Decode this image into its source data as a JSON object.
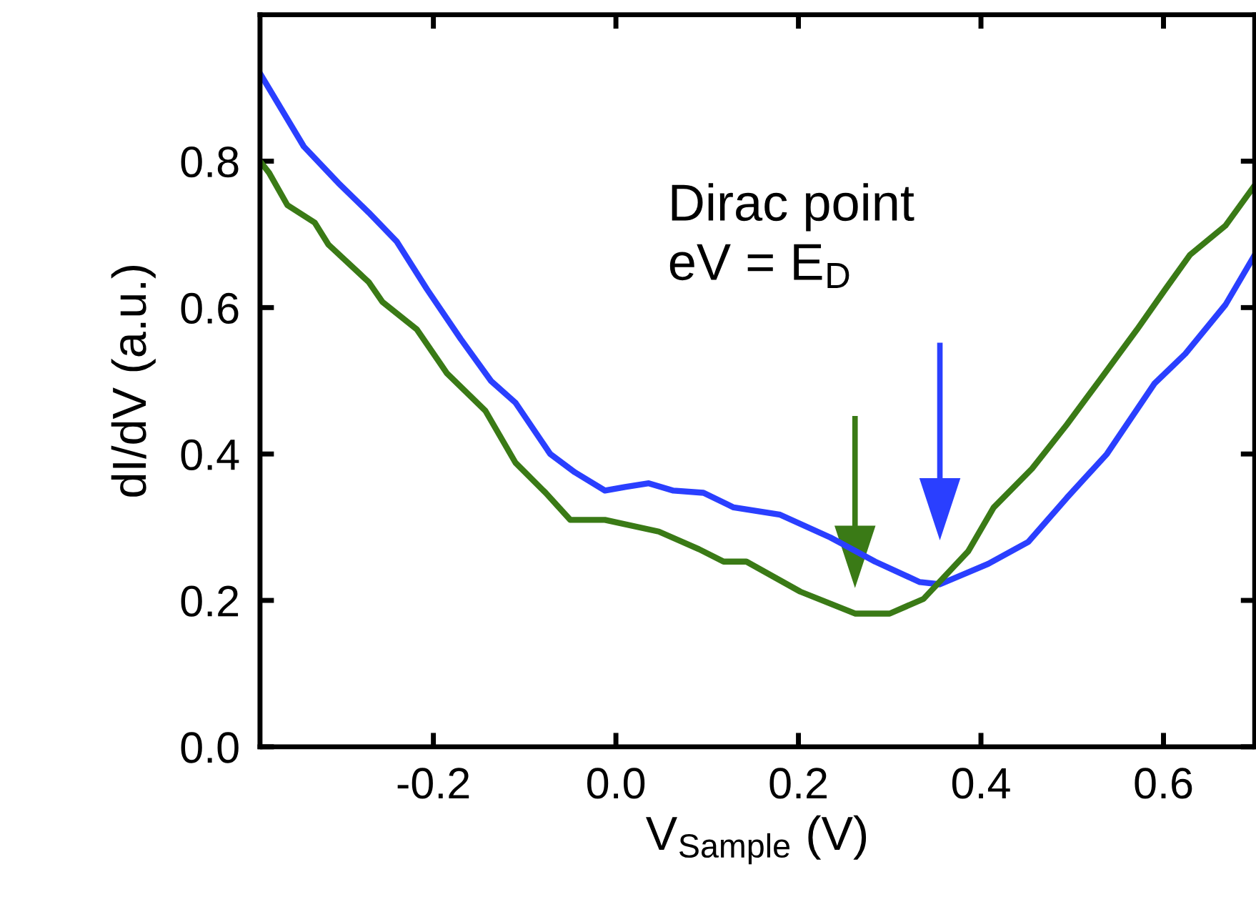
{
  "chart_data": {
    "type": "line",
    "xlabel": "V$_{Sample}$ (V)",
    "ylabel": "dI/dV (a.u.)",
    "xlim": [
      -0.39,
      0.7
    ],
    "ylim": [
      0,
      1.0
    ],
    "xticks": [
      -0.2,
      {
        "value": 0,
        "label": "0.0"
      },
      0.2,
      0.4,
      0.6
    ],
    "yticks": [
      {
        "value": 0,
        "label": "0.0"
      },
      0.2,
      0.4,
      0.6,
      0.8
    ],
    "grid": false,
    "legend": false,
    "line_style": "solid",
    "marker": "none",
    "annotations": [
      "Dirac point\neV = E$_{D}$"
    ],
    "series": [
      {
        "color": "#2a3fff",
        "x": [
          -0.39,
          -0.342,
          -0.304,
          -0.271,
          -0.24,
          -0.207,
          -0.17,
          -0.137,
          -0.11,
          -0.072,
          -0.045,
          -0.012,
          0.01,
          0.036,
          0.063,
          0.096,
          0.129,
          0.18,
          0.235,
          0.284,
          0.333,
          0.355,
          0.408,
          0.452,
          0.494,
          0.538,
          0.59,
          0.624,
          0.668,
          0.7
        ],
        "values": [
          0.92,
          0.82,
          0.77,
          0.73,
          0.69,
          0.625,
          0.557,
          0.5,
          0.47,
          0.4,
          0.375,
          0.35,
          0.355,
          0.36,
          0.35,
          0.347,
          0.327,
          0.317,
          0.286,
          0.253,
          0.225,
          0.222,
          0.25,
          0.28,
          0.34,
          0.4,
          0.496,
          0.537,
          0.604,
          0.672
        ]
      },
      {
        "color": "#3a7a16",
        "x": [
          -0.39,
          -0.38,
          -0.36,
          -0.33,
          -0.315,
          -0.271,
          -0.256,
          -0.218,
          -0.185,
          -0.143,
          -0.11,
          -0.077,
          -0.05,
          -0.012,
          0.047,
          0.091,
          0.118,
          0.143,
          0.202,
          0.262,
          0.3,
          0.337,
          0.386,
          0.414,
          0.456,
          0.494,
          0.532,
          0.571,
          0.602,
          0.629,
          0.668,
          0.7
        ],
        "values": [
          0.8,
          0.784,
          0.74,
          0.716,
          0.686,
          0.635,
          0.608,
          0.57,
          0.51,
          0.459,
          0.388,
          0.347,
          0.31,
          0.31,
          0.294,
          0.27,
          0.253,
          0.253,
          0.212,
          0.182,
          0.182,
          0.202,
          0.267,
          0.327,
          0.38,
          0.44,
          0.504,
          0.57,
          0.625,
          0.672,
          0.712,
          0.767
        ]
      }
    ]
  }
}
